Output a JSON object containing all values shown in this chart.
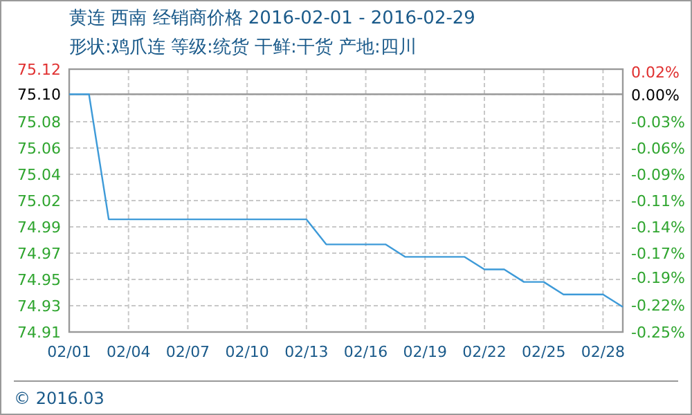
{
  "chart_data": {
    "type": "line",
    "title": "黄连 西南 经销商价格 2016-02-01 - 2016-02-29",
    "subtitle": "形状:鸡爪连 等级:统货 干鲜:干货 产地:四川",
    "x": [
      "2016-02-01",
      "2016-02-02",
      "2016-02-03",
      "2016-02-04",
      "2016-02-05",
      "2016-02-06",
      "2016-02-07",
      "2016-02-08",
      "2016-02-09",
      "2016-02-10",
      "2016-02-11",
      "2016-02-12",
      "2016-02-13",
      "2016-02-14",
      "2016-02-15",
      "2016-02-16",
      "2016-02-17",
      "2016-02-18",
      "2016-02-19",
      "2016-02-20",
      "2016-02-21",
      "2016-02-22",
      "2016-02-23",
      "2016-02-24",
      "2016-02-25",
      "2016-02-26",
      "2016-02-27",
      "2016-02-28",
      "2016-02-29"
    ],
    "series": [
      {
        "color": "#3d9ad8",
        "values": [
          75.1,
          75.1,
          75.0,
          75.0,
          75.0,
          75.0,
          75.0,
          75.0,
          75.0,
          75.0,
          75.0,
          75.0,
          75.0,
          74.98,
          74.98,
          74.98,
          74.98,
          74.97,
          74.97,
          74.97,
          74.97,
          74.96,
          74.96,
          74.95,
          74.95,
          74.94,
          74.94,
          74.94,
          74.93
        ]
      }
    ],
    "xlim": [
      "2016-02-01",
      "2016-02-29"
    ],
    "xticks": [
      {
        "value": "2016-02-01",
        "label": "02/01"
      },
      {
        "value": "2016-02-04",
        "label": "02/04"
      },
      {
        "value": "2016-02-07",
        "label": "02/07"
      },
      {
        "value": "2016-02-10",
        "label": "02/10"
      },
      {
        "value": "2016-02-13",
        "label": "02/13"
      },
      {
        "value": "2016-02-16",
        "label": "02/16"
      },
      {
        "value": "2016-02-19",
        "label": "02/19"
      },
      {
        "value": "2016-02-22",
        "label": "02/22"
      },
      {
        "value": "2016-02-25",
        "label": "02/25"
      },
      {
        "value": "2016-02-28",
        "label": "02/28"
      }
    ],
    "ylim": [
      74.91,
      75.12
    ],
    "yticks": [
      74.91,
      {
        "value": 74.931,
        "label": "74.93"
      },
      {
        "value": 74.952,
        "label": "74.95"
      },
      {
        "value": 74.973,
        "label": "74.97"
      },
      {
        "value": 74.994,
        "label": "74.99"
      },
      {
        "value": 75.015,
        "label": "75.02"
      },
      {
        "value": 75.036,
        "label": "75.04"
      },
      {
        "value": 75.057,
        "label": "75.06"
      },
      {
        "value": 75.078,
        "label": "75.08"
      },
      {
        "value": 75.1,
        "label": "75.10"
      },
      75.12
    ],
    "y2lim": [
      -0.253,
      0.027
    ],
    "y2ticks": [
      {
        "value": -0.253,
        "label": "-0.25%"
      },
      {
        "value": -0.224,
        "label": "-0.22%"
      },
      {
        "value": -0.195,
        "label": "-0.19%"
      },
      {
        "value": -0.169,
        "label": "-0.17%"
      },
      {
        "value": -0.141,
        "label": "-0.14%"
      },
      {
        "value": -0.113,
        "label": "-0.11%"
      },
      {
        "value": -0.085,
        "label": "-0.09%"
      },
      {
        "value": -0.057,
        "label": "-0.06%"
      },
      {
        "value": -0.029,
        "label": "-0.03%"
      },
      {
        "value": 0,
        "label": "0.00%"
      },
      {
        "value": 0.024,
        "label": "0.02%"
      }
    ],
    "ref_lines": [
      {
        "axis": "y",
        "value": 75.1,
        "color": "#999999"
      }
    ],
    "grid": true,
    "annotations": [
      "© 2016.03"
    ]
  }
}
